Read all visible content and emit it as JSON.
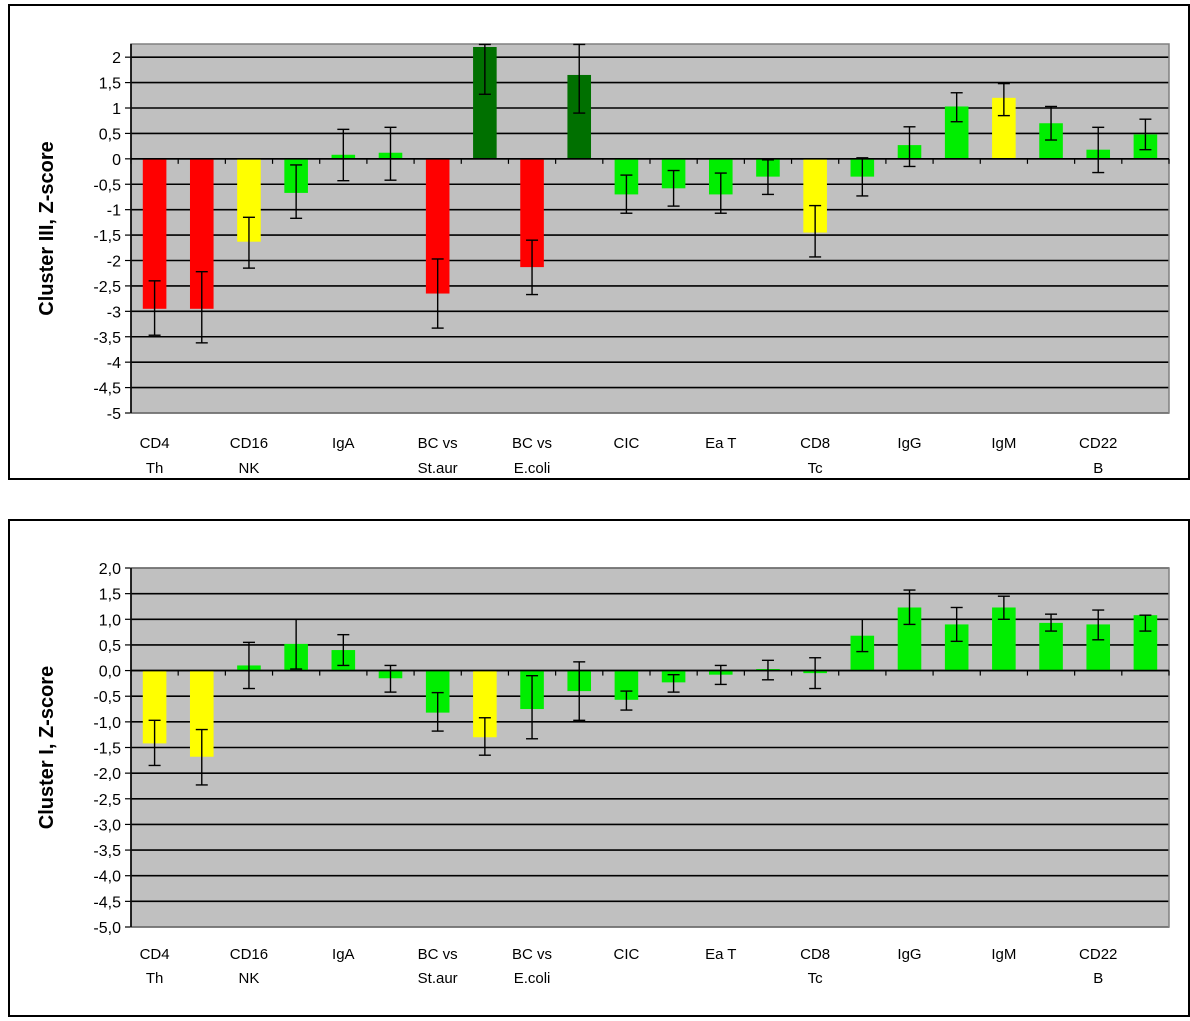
{
  "colors": {
    "plot_bg": "#C0C0C0",
    "red": "#FF0000",
    "yellow": "#FFFF00",
    "green": "#00EE00",
    "dark_green": "#007000",
    "grid": "#000000"
  },
  "chart_data": [
    {
      "type": "bar",
      "ylabel": "Cluster III, Z-score",
      "ylim": [
        -5,
        2.2
      ],
      "yticks": [
        2,
        1.5,
        1,
        0.5,
        0,
        -0.5,
        -1,
        -1.5,
        -2,
        -2.5,
        -3,
        -3.5,
        -4,
        -4.5,
        -5
      ],
      "ytick_labels": [
        "2",
        "1,5",
        "1",
        "0,5",
        "0",
        "-0,5",
        "-1",
        "-1,5",
        "-2",
        "-2,5",
        "-3",
        "-3,5",
        "-4",
        "-4,5",
        "-5"
      ],
      "grid": true,
      "category_labels": [
        {
          "line1": "CD4",
          "line2": "Th"
        },
        {
          "line1": "CD16",
          "line2": "NK"
        },
        {
          "line1": "IgA",
          "line2": ""
        },
        {
          "line1": "BC vs",
          "line2": "St.aur"
        },
        {
          "line1": "BC vs",
          "line2": "E.coli"
        },
        {
          "line1": "CIC",
          "line2": ""
        },
        {
          "line1": "Ea T",
          "line2": ""
        },
        {
          "line1": "CD8",
          "line2": "Tc"
        },
        {
          "line1": "IgG",
          "line2": ""
        },
        {
          "line1": "IgM",
          "line2": ""
        },
        {
          "line1": "CD22",
          "line2": "B"
        }
      ],
      "bars": [
        {
          "value": -2.95,
          "err_low": -3.47,
          "err_high": -2.4,
          "color": "red"
        },
        {
          "value": -2.95,
          "err_low": -3.62,
          "err_high": -2.22,
          "color": "red"
        },
        {
          "value": -1.63,
          "err_low": -2.15,
          "err_high": -1.15,
          "color": "yellow"
        },
        {
          "value": -0.67,
          "err_low": -1.17,
          "err_high": -0.12,
          "color": "green"
        },
        {
          "value": 0.08,
          "err_low": -0.43,
          "err_high": 0.58,
          "color": "green"
        },
        {
          "value": 0.12,
          "err_low": -0.42,
          "err_high": 0.62,
          "color": "green"
        },
        {
          "value": -2.65,
          "err_low": -3.33,
          "err_high": -1.97,
          "color": "red"
        },
        {
          "value": 2.2,
          "err_low": 1.27,
          "err_high": 2.25,
          "color": "dark_green"
        },
        {
          "value": -2.13,
          "err_low": -2.67,
          "err_high": -1.6,
          "color": "red"
        },
        {
          "value": 1.65,
          "err_low": 0.9,
          "err_high": 2.25,
          "color": "dark_green"
        },
        {
          "value": -0.7,
          "err_low": -1.07,
          "err_high": -0.32,
          "color": "green"
        },
        {
          "value": -0.58,
          "err_low": -0.93,
          "err_high": -0.23,
          "color": "green"
        },
        {
          "value": -0.7,
          "err_low": -1.07,
          "err_high": -0.28,
          "color": "green"
        },
        {
          "value": -0.35,
          "err_low": -0.7,
          "err_high": -0.02,
          "color": "green"
        },
        {
          "value": -1.45,
          "err_low": -1.93,
          "err_high": -0.92,
          "color": "yellow"
        },
        {
          "value": -0.35,
          "err_low": -0.73,
          "err_high": 0.02,
          "color": "green"
        },
        {
          "value": 0.27,
          "err_low": -0.15,
          "err_high": 0.63,
          "color": "green"
        },
        {
          "value": 1.03,
          "err_low": 0.73,
          "err_high": 1.3,
          "color": "green"
        },
        {
          "value": 1.2,
          "err_low": 0.85,
          "err_high": 1.48,
          "color": "yellow"
        },
        {
          "value": 0.7,
          "err_low": 0.37,
          "err_high": 1.03,
          "color": "green"
        },
        {
          "value": 0.18,
          "err_low": -0.27,
          "err_high": 0.62,
          "color": "green"
        },
        {
          "value": 0.48,
          "err_low": 0.18,
          "err_high": 0.78,
          "color": "green"
        }
      ]
    },
    {
      "type": "bar",
      "ylabel": "Cluster I, Z-score",
      "ylim": [
        -5,
        2
      ],
      "yticks": [
        2,
        1.5,
        1,
        0.5,
        0,
        -0.5,
        -1,
        -1.5,
        -2,
        -2.5,
        -3,
        -3.5,
        -4,
        -4.5,
        -5
      ],
      "ytick_labels": [
        "2,0",
        "1,5",
        "1,0",
        "0,5",
        "0,0",
        "-0,5",
        "-1,0",
        "-1,5",
        "-2,0",
        "-2,5",
        "-3,0",
        "-3,5",
        "-4,0",
        "-4,5",
        "-5,0"
      ],
      "grid": true,
      "category_labels": [
        {
          "line1": "CD4",
          "line2": "Th"
        },
        {
          "line1": "CD16",
          "line2": "NK"
        },
        {
          "line1": "IgA",
          "line2": ""
        },
        {
          "line1": "BC vs",
          "line2": "St.aur"
        },
        {
          "line1": "BC vs",
          "line2": "E.coli"
        },
        {
          "line1": "CIC",
          "line2": ""
        },
        {
          "line1": "Ea T",
          "line2": ""
        },
        {
          "line1": "CD8",
          "line2": "Tc"
        },
        {
          "line1": "IgG",
          "line2": ""
        },
        {
          "line1": "IgM",
          "line2": ""
        },
        {
          "line1": "CD22",
          "line2": "B"
        }
      ],
      "bars": [
        {
          "value": -1.42,
          "err_low": -1.85,
          "err_high": -0.97,
          "color": "yellow"
        },
        {
          "value": -1.68,
          "err_low": -2.23,
          "err_high": -1.15,
          "color": "yellow"
        },
        {
          "value": 0.1,
          "err_low": -0.35,
          "err_high": 0.55,
          "color": "green"
        },
        {
          "value": 0.52,
          "err_low": 0.03,
          "err_high": 1.0,
          "color": "green"
        },
        {
          "value": 0.4,
          "err_low": 0.1,
          "err_high": 0.7,
          "color": "green"
        },
        {
          "value": -0.15,
          "err_low": -0.42,
          "err_high": 0.1,
          "color": "green"
        },
        {
          "value": -0.82,
          "err_low": -1.18,
          "err_high": -0.43,
          "color": "green"
        },
        {
          "value": -1.3,
          "err_low": -1.65,
          "err_high": -0.92,
          "color": "yellow"
        },
        {
          "value": -0.75,
          "err_low": -1.33,
          "err_high": -0.1,
          "color": "green"
        },
        {
          "value": -0.4,
          "err_low": -0.97,
          "err_high": 0.17,
          "color": "green"
        },
        {
          "value": -0.57,
          "err_low": -0.77,
          "err_high": -0.4,
          "color": "green"
        },
        {
          "value": -0.23,
          "err_low": -0.42,
          "err_high": -0.08,
          "color": "green"
        },
        {
          "value": -0.08,
          "err_low": -0.27,
          "err_high": 0.1,
          "color": "green"
        },
        {
          "value": 0.03,
          "err_low": -0.18,
          "err_high": 0.2,
          "color": "green"
        },
        {
          "value": -0.05,
          "err_low": -0.35,
          "err_high": 0.25,
          "color": "green"
        },
        {
          "value": 0.68,
          "err_low": 0.37,
          "err_high": 1.0,
          "color": "green"
        },
        {
          "value": 1.23,
          "err_low": 0.9,
          "err_high": 1.57,
          "color": "green"
        },
        {
          "value": 0.9,
          "err_low": 0.57,
          "err_high": 1.23,
          "color": "green"
        },
        {
          "value": 1.23,
          "err_low": 1.0,
          "err_high": 1.45,
          "color": "green"
        },
        {
          "value": 0.93,
          "err_low": 0.77,
          "err_high": 1.1,
          "color": "green"
        },
        {
          "value": 0.9,
          "err_low": 0.6,
          "err_high": 1.18,
          "color": "green"
        },
        {
          "value": 1.08,
          "err_low": 0.77,
          "err_high": 1.08,
          "color": "green"
        }
      ]
    }
  ]
}
